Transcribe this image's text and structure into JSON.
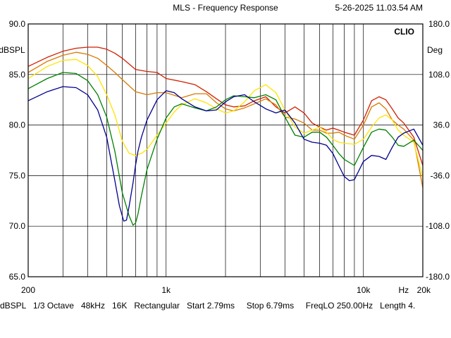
{
  "header": {
    "title": "MLS - Frequency Response",
    "timestamp": "5-26-2025 11.03.54 AM",
    "brand": "CLIO"
  },
  "footer": {
    "text": "dBSPL   1/3 Octave   48kHz   16K   Rectangular   Start 2.79ms     Stop 6.79ms     FreqLO 250.00Hz   Length 4."
  },
  "colors": {
    "background": "#ffffff",
    "plot_background": "#ffffff",
    "frame": "#000000",
    "grid": "#000000"
  },
  "chart_data": {
    "type": "line",
    "title": "MLS - Frequency Response",
    "x_scale": "log",
    "xlim": [
      200,
      20000
    ],
    "ylim": [
      65,
      90
    ],
    "y2lim": [
      -180,
      180
    ],
    "grid": true,
    "ylabel": "dBSPL",
    "y2label": "Deg",
    "xlabel": "Hz",
    "x_tick_labels": [
      {
        "value": 200,
        "label": "200"
      },
      {
        "value": 1000,
        "label": "1k"
      },
      {
        "value": 10000,
        "label": "10k"
      },
      {
        "value": 20000,
        "label": "20k"
      }
    ],
    "xunit_label": {
      "value": 16000,
      "label": "Hz"
    },
    "y_ticks": [
      {
        "value": 90,
        "label": "90.0"
      },
      {
        "value": 85,
        "label": "85.0"
      },
      {
        "value": 80,
        "label": "80.0"
      },
      {
        "value": 75,
        "label": "75.0"
      },
      {
        "value": 70,
        "label": "70.0"
      },
      {
        "value": 65,
        "label": "65.0"
      }
    ],
    "y2_ticks": [
      {
        "value": 180,
        "label": "180.0"
      },
      {
        "value": 108,
        "label": "108.0"
      },
      {
        "value": 36,
        "label": "36.0"
      },
      {
        "value": -36,
        "label": "-36.0"
      },
      {
        "value": -108,
        "label": "-108.0"
      },
      {
        "value": -180,
        "label": "-180.0"
      }
    ],
    "series": [
      {
        "color": "#d02000",
        "x": [
          200,
          250,
          300,
          350,
          400,
          450,
          500,
          550,
          600,
          700,
          800,
          900,
          1000,
          1200,
          1400,
          1600,
          1800,
          2000,
          2200,
          2500,
          2800,
          3200,
          3600,
          4000,
          4500,
          5000,
          5500,
          6000,
          6500,
          7000,
          7500,
          8000,
          9000,
          10000,
          11000,
          12000,
          13000,
          14000,
          15000,
          16000,
          18000,
          20000
        ],
        "y": [
          85.8,
          86.7,
          87.3,
          87.6,
          87.7,
          87.7,
          87.5,
          87.1,
          86.6,
          85.5,
          85.3,
          85.2,
          84.6,
          84.3,
          84.0,
          83.3,
          82.6,
          82.0,
          81.8,
          81.9,
          82.4,
          82.8,
          81.8,
          81.2,
          81.8,
          81.2,
          80.2,
          79.8,
          79.5,
          79.7,
          79.5,
          79.3,
          79.0,
          80.5,
          82.4,
          82.8,
          82.5,
          81.6,
          80.7,
          80.2,
          78.8,
          76.0
        ]
      },
      {
        "color": "#d87800",
        "x": [
          200,
          250,
          300,
          350,
          400,
          450,
          500,
          550,
          600,
          700,
          800,
          900,
          1000,
          1200,
          1400,
          1600,
          1800,
          2000,
          2200,
          2500,
          2800,
          3200,
          3600,
          4000,
          4500,
          5000,
          5500,
          6000,
          6500,
          7000,
          7500,
          8000,
          9000,
          10000,
          11000,
          12000,
          13000,
          14000,
          15000,
          16000,
          18000,
          20000
        ],
        "y": [
          85.2,
          86.3,
          86.9,
          87.2,
          87.0,
          86.6,
          85.9,
          85.2,
          84.5,
          83.3,
          83.0,
          83.2,
          83.2,
          82.7,
          83.1,
          83.1,
          82.2,
          81.6,
          81.4,
          81.7,
          82.1,
          82.6,
          82.0,
          80.8,
          80.6,
          80.2,
          79.5,
          79.5,
          79.2,
          79.2,
          79.3,
          79.0,
          78.6,
          80.0,
          81.8,
          82.2,
          81.6,
          80.5,
          80.0,
          79.6,
          78.5,
          73.8
        ]
      },
      {
        "color": "#ffe400",
        "x": [
          200,
          250,
          300,
          350,
          400,
          450,
          500,
          550,
          600,
          650,
          700,
          750,
          800,
          900,
          1000,
          1100,
          1200,
          1400,
          1600,
          1800,
          2000,
          2200,
          2500,
          2800,
          3200,
          3600,
          4000,
          4500,
          5000,
          5500,
          6000,
          6500,
          7000,
          7500,
          8000,
          9000,
          10000,
          11000,
          12000,
          13000,
          14000,
          15000,
          16000,
          18000,
          20000
        ],
        "y": [
          84.6,
          85.8,
          86.4,
          86.5,
          85.9,
          84.8,
          83.0,
          81.0,
          78.4,
          77.2,
          77.0,
          77.2,
          77.6,
          79.0,
          80.2,
          81.3,
          82.0,
          82.6,
          82.2,
          81.6,
          81.2,
          81.4,
          82.3,
          83.4,
          84.0,
          83.2,
          81.5,
          79.8,
          79.2,
          79.5,
          79.8,
          79.3,
          78.6,
          78.3,
          78.2,
          78.1,
          78.6,
          79.8,
          80.7,
          81.0,
          80.5,
          79.5,
          79.0,
          78.3,
          74.8
        ]
      },
      {
        "color": "#008000",
        "x": [
          200,
          250,
          300,
          350,
          400,
          450,
          500,
          550,
          600,
          650,
          680,
          700,
          720,
          750,
          800,
          900,
          1000,
          1100,
          1200,
          1400,
          1600,
          1800,
          2000,
          2200,
          2500,
          2800,
          3200,
          3600,
          4000,
          4500,
          5000,
          5500,
          6000,
          6500,
          7000,
          7500,
          8000,
          9000,
          10000,
          11000,
          12000,
          13000,
          14000,
          15000,
          16000,
          18000,
          20000
        ],
        "y": [
          83.6,
          84.6,
          85.2,
          85.1,
          84.4,
          83.0,
          80.8,
          77.4,
          73.3,
          71.0,
          70.1,
          70.3,
          71.2,
          73.0,
          75.6,
          78.6,
          80.7,
          81.8,
          82.1,
          81.7,
          81.4,
          81.8,
          82.5,
          82.9,
          82.8,
          82.7,
          83.0,
          82.5,
          80.8,
          79.0,
          78.8,
          79.3,
          79.3,
          78.8,
          78.0,
          77.2,
          76.6,
          76.0,
          77.8,
          79.3,
          79.6,
          79.5,
          78.8,
          78.0,
          77.9,
          78.5,
          77.5
        ]
      },
      {
        "color": "#000090",
        "x": [
          200,
          250,
          300,
          350,
          400,
          450,
          500,
          550,
          580,
          610,
          630,
          650,
          680,
          700,
          720,
          750,
          800,
          900,
          1000,
          1100,
          1200,
          1400,
          1600,
          1800,
          2000,
          2200,
          2500,
          2800,
          3200,
          3600,
          4000,
          4500,
          5000,
          5500,
          6000,
          6500,
          7000,
          7500,
          8000,
          8500,
          9000,
          10000,
          11000,
          12000,
          13000,
          14000,
          15000,
          16000,
          18000,
          20000
        ],
        "y": [
          82.4,
          83.3,
          83.8,
          83.7,
          83.0,
          81.5,
          78.8,
          74.5,
          72.0,
          70.5,
          70.6,
          72.0,
          74.3,
          76.0,
          77.4,
          78.8,
          80.5,
          82.5,
          83.4,
          83.2,
          82.6,
          81.8,
          81.4,
          81.5,
          82.3,
          82.8,
          83.0,
          82.3,
          81.6,
          81.2,
          81.5,
          80.2,
          78.6,
          78.3,
          78.2,
          78.0,
          77.2,
          76.0,
          74.9,
          74.5,
          74.6,
          76.4,
          77.0,
          76.9,
          76.6,
          77.8,
          78.8,
          79.2,
          79.6,
          78.0
        ]
      }
    ]
  }
}
